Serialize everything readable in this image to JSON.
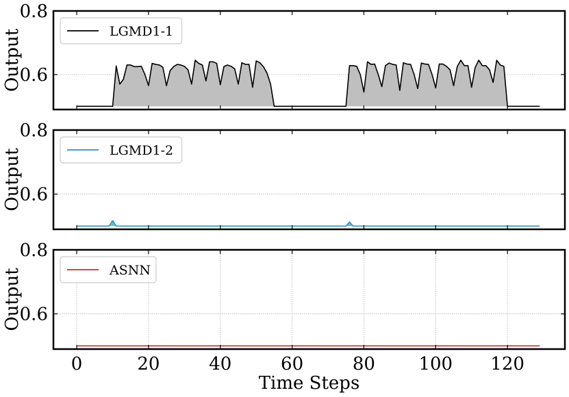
{
  "chart_data": {
    "type": "line",
    "x_label": "Time Steps",
    "x_ticks": [
      0,
      20,
      40,
      60,
      80,
      100,
      120
    ],
    "x_range": [
      -6.5,
      136
    ],
    "y_label": "Output",
    "y_ticks": [
      0.6,
      0.8
    ],
    "y_range": [
      0.49,
      0.8
    ],
    "grid": true,
    "legend_placement": "top-left",
    "panels": [
      {
        "series_name": "LGMD1-1",
        "color": "#000000",
        "fill_color": "#bfbfbf",
        "values": [
          0.5,
          0.5,
          0.5,
          0.5,
          0.5,
          0.5,
          0.5,
          0.5,
          0.5,
          0.5,
          0.5,
          0.627,
          0.57,
          0.585,
          0.63,
          0.63,
          0.625,
          0.625,
          0.626,
          0.6,
          0.565,
          0.635,
          0.632,
          0.63,
          0.623,
          0.565,
          0.612,
          0.625,
          0.632,
          0.63,
          0.626,
          0.615,
          0.57,
          0.645,
          0.635,
          0.63,
          0.58,
          0.64,
          0.64,
          0.635,
          0.568,
          0.625,
          0.63,
          0.626,
          0.618,
          0.57,
          0.637,
          0.632,
          0.632,
          0.56,
          0.643,
          0.637,
          0.625,
          0.605,
          0.57,
          0.5,
          0.5,
          0.5,
          0.5,
          0.5,
          0.5,
          0.5,
          0.5,
          0.5,
          0.5,
          0.5,
          0.5,
          0.5,
          0.5,
          0.5,
          0.5,
          0.5,
          0.5,
          0.5,
          0.5,
          0.5,
          0.628,
          0.628,
          0.626,
          0.6,
          0.545,
          0.64,
          0.632,
          0.633,
          0.6,
          0.562,
          0.628,
          0.636,
          0.632,
          0.63,
          0.55,
          0.637,
          0.633,
          0.632,
          0.6,
          0.556,
          0.636,
          0.633,
          0.632,
          0.6,
          0.558,
          0.633,
          0.633,
          0.626,
          0.615,
          0.565,
          0.625,
          0.645,
          0.628,
          0.628,
          0.56,
          0.622,
          0.645,
          0.628,
          0.628,
          0.615,
          0.575,
          0.645,
          0.63,
          0.626,
          0.5,
          0.5,
          0.5,
          0.5,
          0.5,
          0.5,
          0.5,
          0.5,
          0.5,
          0.5
        ]
      },
      {
        "series_name": "LGMD1-2",
        "color": "#2f8fc4",
        "fill_color": "#6fb6dc",
        "values": [
          0.5,
          0.5,
          0.5,
          0.5,
          0.5,
          0.5,
          0.5,
          0.5,
          0.5,
          0.5,
          0.517,
          0.5,
          0.5,
          0.5,
          0.5,
          0.5,
          0.5,
          0.5,
          0.5,
          0.5,
          0.5,
          0.5,
          0.5,
          0.5,
          0.5,
          0.5,
          0.5,
          0.5,
          0.5,
          0.5,
          0.5,
          0.5,
          0.5,
          0.5,
          0.5,
          0.5,
          0.5,
          0.5,
          0.5,
          0.5,
          0.5,
          0.5,
          0.5,
          0.5,
          0.5,
          0.5,
          0.5,
          0.5,
          0.5,
          0.5,
          0.5,
          0.5,
          0.5,
          0.5,
          0.5,
          0.5,
          0.5,
          0.5,
          0.5,
          0.5,
          0.5,
          0.5,
          0.5,
          0.5,
          0.5,
          0.5,
          0.5,
          0.5,
          0.5,
          0.5,
          0.5,
          0.5,
          0.5,
          0.5,
          0.5,
          0.5,
          0.513,
          0.5,
          0.5,
          0.5,
          0.5,
          0.5,
          0.5,
          0.5,
          0.5,
          0.5,
          0.5,
          0.5,
          0.5,
          0.5,
          0.5,
          0.5,
          0.5,
          0.5,
          0.5,
          0.5,
          0.5,
          0.5,
          0.5,
          0.5,
          0.5,
          0.5,
          0.5,
          0.5,
          0.5,
          0.5,
          0.5,
          0.5,
          0.5,
          0.5,
          0.5,
          0.5,
          0.5,
          0.5,
          0.5,
          0.5,
          0.5,
          0.5,
          0.5,
          0.5,
          0.5,
          0.5,
          0.5,
          0.5,
          0.5,
          0.5,
          0.5,
          0.5,
          0.5,
          0.5
        ]
      },
      {
        "series_name": "ASNN",
        "color": "#d62728",
        "fill_color": "#d62728",
        "values": [
          0.5,
          0.5,
          0.5,
          0.5,
          0.5,
          0.5,
          0.5,
          0.5,
          0.5,
          0.5,
          0.5,
          0.5,
          0.5,
          0.5,
          0.5,
          0.5,
          0.5,
          0.5,
          0.5,
          0.5,
          0.5,
          0.5,
          0.5,
          0.5,
          0.5,
          0.5,
          0.5,
          0.5,
          0.5,
          0.5,
          0.5,
          0.5,
          0.5,
          0.5,
          0.5,
          0.5,
          0.5,
          0.5,
          0.5,
          0.5,
          0.5,
          0.5,
          0.5,
          0.5,
          0.5,
          0.5,
          0.5,
          0.5,
          0.5,
          0.5,
          0.5,
          0.5,
          0.5,
          0.5,
          0.5,
          0.5,
          0.5,
          0.5,
          0.5,
          0.5,
          0.5,
          0.5,
          0.5,
          0.5,
          0.5,
          0.5,
          0.5,
          0.5,
          0.5,
          0.5,
          0.5,
          0.5,
          0.5,
          0.5,
          0.5,
          0.5,
          0.5,
          0.5,
          0.5,
          0.5,
          0.5,
          0.5,
          0.5,
          0.5,
          0.5,
          0.5,
          0.5,
          0.5,
          0.5,
          0.5,
          0.5,
          0.5,
          0.5,
          0.5,
          0.5,
          0.5,
          0.5,
          0.5,
          0.5,
          0.5,
          0.5,
          0.5,
          0.5,
          0.5,
          0.5,
          0.5,
          0.5,
          0.5,
          0.5,
          0.5,
          0.5,
          0.5,
          0.5,
          0.5,
          0.5,
          0.5,
          0.5,
          0.5,
          0.5,
          0.5,
          0.5,
          0.5,
          0.5,
          0.5,
          0.5,
          0.5,
          0.5,
          0.5,
          0.5,
          0.5
        ]
      }
    ]
  }
}
